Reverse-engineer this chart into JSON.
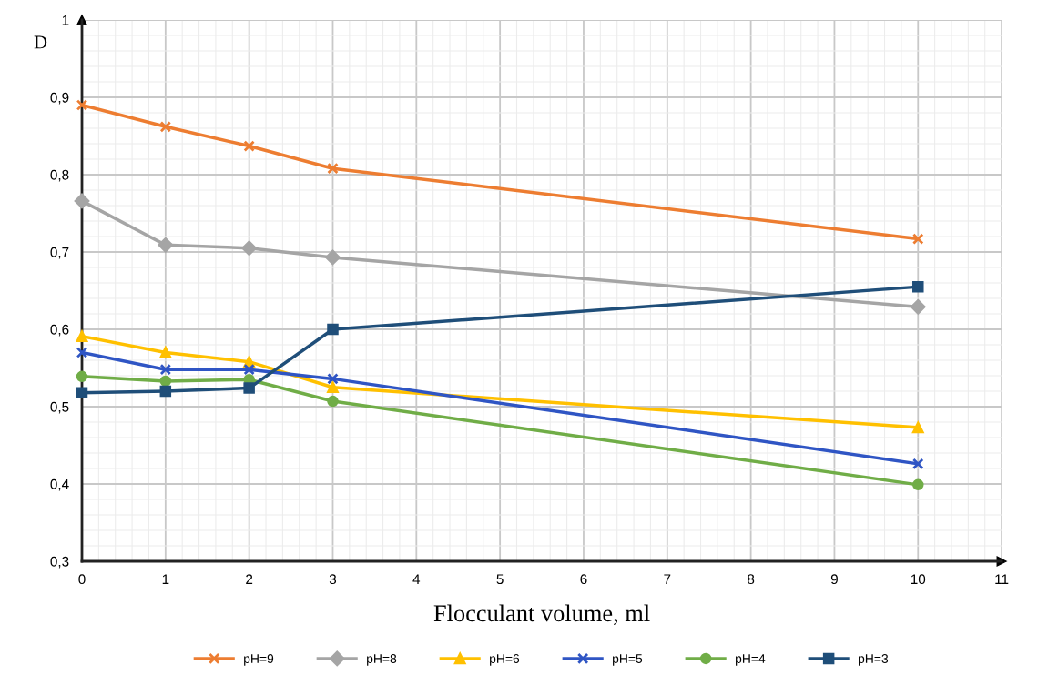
{
  "chart_data": {
    "type": "line",
    "xlabel": "Flocculant volume, ml",
    "ylabel": "D",
    "x": [
      0,
      1,
      2,
      3,
      10
    ],
    "xlim": [
      0,
      11
    ],
    "xticks": [
      0,
      1,
      2,
      3,
      4,
      5,
      6,
      7,
      8,
      9,
      10,
      11
    ],
    "ylim": [
      0.3,
      1
    ],
    "yticks": [
      {
        "value": 0.3,
        "label": "0,3"
      },
      {
        "value": 0.4,
        "label": "0,4"
      },
      {
        "value": 0.5,
        "label": "0,5"
      },
      {
        "value": 0.6,
        "label": "0,6"
      },
      {
        "value": 0.7,
        "label": "0,7"
      },
      {
        "value": 0.8,
        "label": "0,8"
      },
      {
        "value": 0.9,
        "label": "0,9"
      },
      1
    ],
    "grid": true,
    "legend": "bottom",
    "line_style": "solid",
    "series": [
      {
        "name": "pH=9",
        "color": "#ed7d31",
        "marker": "cross",
        "values": [
          0.89,
          0.862,
          0.837,
          0.808,
          0.717
        ]
      },
      {
        "name": "pH=8",
        "color": "#a5a5a5",
        "marker": "diamond",
        "values": [
          0.766,
          0.709,
          0.705,
          0.693,
          0.629
        ]
      },
      {
        "name": "pH=6",
        "color": "#ffc000",
        "marker": "triangle",
        "values": [
          0.591,
          0.57,
          0.558,
          0.525,
          0.473
        ]
      },
      {
        "name": "pH=5",
        "color": "#2f55c4",
        "marker": "cross",
        "values": [
          0.57,
          0.548,
          0.548,
          0.536,
          0.426
        ]
      },
      {
        "name": "pH=4",
        "color": "#70ad47",
        "marker": "circle",
        "values": [
          0.539,
          0.533,
          0.535,
          0.507,
          0.399
        ]
      },
      {
        "name": "pH=3",
        "color": "#1f4e79",
        "marker": "square",
        "values": [
          0.518,
          0.52,
          0.524,
          0.6,
          0.655
        ]
      }
    ]
  }
}
